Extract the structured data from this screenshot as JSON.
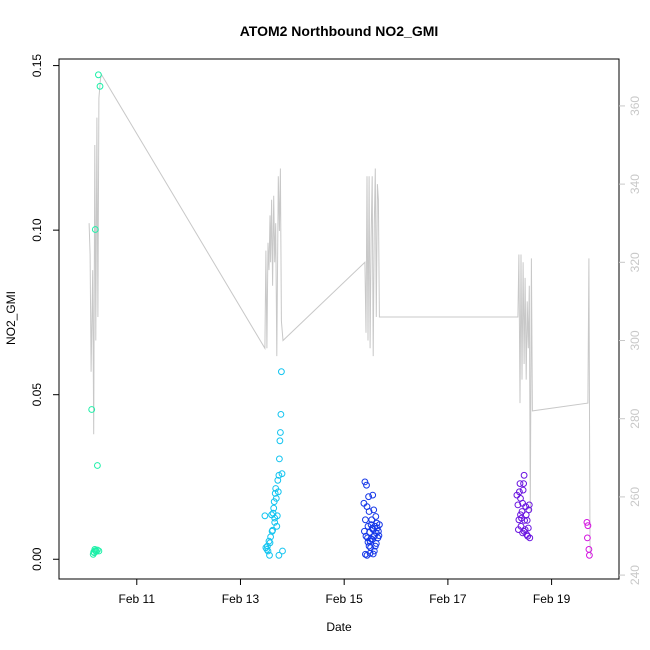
{
  "chart_data": {
    "type": "scatter",
    "title": "ATOM2 Northbound NO2_GMI",
    "xlabel": "Date",
    "ylabel": "NO2_GMI",
    "x_ticks": [
      "Feb 11",
      "Feb 13",
      "Feb 15",
      "Feb 17",
      "Feb 19"
    ],
    "x_tick_values": [
      11,
      13,
      15,
      17,
      19
    ],
    "xlim": [
      9.5,
      20.3
    ],
    "ylim": [
      -0.006,
      0.152
    ],
    "y_ticks": [
      "0.00",
      "0.05",
      "0.10",
      "0.15"
    ],
    "y_tick_values": [
      0.0,
      0.05,
      0.1,
      0.15
    ],
    "y2lim": [
      239,
      372
    ],
    "y2_ticks": [
      "240",
      "260",
      "280",
      "300",
      "320",
      "340",
      "360"
    ],
    "y2_tick_values": [
      240,
      260,
      280,
      300,
      320,
      340,
      360
    ],
    "grid": false,
    "legend": "none",
    "line_color": "#c8c8c8",
    "colors": {
      "g1": "#1cf0a8",
      "g2": "#12c4f0",
      "g3": "#1436e8",
      "g4": "#6a14e0",
      "g5": "#d414e0"
    },
    "series": [
      {
        "color_key": "g1",
        "points": [
          [
            10.13,
            0.0455
          ],
          [
            10.16,
            0.0015
          ],
          [
            10.17,
            0.0022
          ],
          [
            10.19,
            0.003
          ],
          [
            10.2,
            0.0026
          ],
          [
            10.22,
            0.0024
          ],
          [
            10.24,
            0.0028
          ],
          [
            10.2,
            0.1002
          ],
          [
            10.24,
            0.0285
          ],
          [
            10.26,
            0.1472
          ],
          [
            10.29,
            0.1437
          ],
          [
            10.18,
            0.002
          ],
          [
            10.27,
            0.0025
          ]
        ]
      },
      {
        "color_key": "g2",
        "points": [
          [
            13.47,
            0.0132
          ],
          [
            13.49,
            0.0035
          ],
          [
            13.51,
            0.003
          ],
          [
            13.52,
            0.004
          ],
          [
            13.55,
            0.0055
          ],
          [
            13.56,
            0.0012
          ],
          [
            13.58,
            0.0068
          ],
          [
            13.6,
            0.0135
          ],
          [
            13.61,
            0.0085
          ],
          [
            13.63,
            0.014
          ],
          [
            13.64,
            0.0155
          ],
          [
            13.65,
            0.0175
          ],
          [
            13.66,
            0.0125
          ],
          [
            13.67,
            0.02
          ],
          [
            13.68,
            0.0215
          ],
          [
            13.69,
            0.0185
          ],
          [
            13.7,
            0.01
          ],
          [
            13.71,
            0.0132
          ],
          [
            13.72,
            0.024
          ],
          [
            13.73,
            0.0205
          ],
          [
            13.74,
            0.0255
          ],
          [
            13.74,
            0.0012
          ],
          [
            13.75,
            0.0305
          ],
          [
            13.76,
            0.036
          ],
          [
            13.77,
            0.0385
          ],
          [
            13.78,
            0.044
          ],
          [
            13.79,
            0.057
          ],
          [
            13.8,
            0.026
          ],
          [
            13.81,
            0.0025
          ],
          [
            13.62,
            0.0088
          ],
          [
            13.66,
            0.0112
          ],
          [
            13.57,
            0.005
          ],
          [
            13.53,
            0.0025
          ]
        ]
      },
      {
        "color_key": "g3",
        "points": [
          [
            15.38,
            0.017
          ],
          [
            15.39,
            0.0085
          ],
          [
            15.4,
            0.0235
          ],
          [
            15.41,
            0.012
          ],
          [
            15.42,
            0.007
          ],
          [
            15.43,
            0.0225
          ],
          [
            15.44,
            0.016
          ],
          [
            15.45,
            0.0065
          ],
          [
            15.46,
            0.01
          ],
          [
            15.47,
            0.019
          ],
          [
            15.48,
            0.0145
          ],
          [
            15.49,
            0.0082
          ],
          [
            15.5,
            0.0055
          ],
          [
            15.51,
            0.0035
          ],
          [
            15.52,
            0.0105
          ],
          [
            15.53,
            0.012
          ],
          [
            15.54,
            0.006
          ],
          [
            15.55,
            0.0195
          ],
          [
            15.56,
            0.009
          ],
          [
            15.57,
            0.015
          ],
          [
            15.58,
            0.007
          ],
          [
            15.59,
            0.01
          ],
          [
            15.6,
            0.004
          ],
          [
            15.61,
            0.013
          ],
          [
            15.62,
            0.008
          ],
          [
            15.63,
            0.011
          ],
          [
            15.64,
            0.0095
          ],
          [
            15.65,
            0.0065
          ],
          [
            15.66,
            0.0085
          ],
          [
            15.67,
            0.0072
          ],
          [
            15.68,
            0.0105
          ],
          [
            15.41,
            0.0015
          ],
          [
            15.44,
            0.0012
          ],
          [
            15.5,
            0.0018
          ],
          [
            15.56,
            0.0016
          ],
          [
            15.52,
            0.0062
          ],
          [
            15.46,
            0.0052
          ],
          [
            15.58,
            0.0025
          ],
          [
            15.62,
            0.0048
          ],
          [
            15.48,
            0.004
          ],
          [
            15.54,
            0.0094
          ]
        ]
      },
      {
        "color_key": "g4",
        "points": [
          [
            18.33,
            0.0195
          ],
          [
            18.35,
            0.0165
          ],
          [
            18.36,
            0.009
          ],
          [
            18.38,
            0.0205
          ],
          [
            18.39,
            0.023
          ],
          [
            18.4,
            0.0185
          ],
          [
            18.41,
            0.01
          ],
          [
            18.42,
            0.0125
          ],
          [
            18.43,
            0.0145
          ],
          [
            18.44,
            0.008
          ],
          [
            18.45,
            0.021
          ],
          [
            18.46,
            0.023
          ],
          [
            18.47,
            0.0255
          ],
          [
            18.48,
            0.0118
          ],
          [
            18.49,
            0.009
          ],
          [
            18.5,
            0.016
          ],
          [
            18.51,
            0.0135
          ],
          [
            18.52,
            0.0075
          ],
          [
            18.53,
            0.0118
          ],
          [
            18.54,
            0.007
          ],
          [
            18.55,
            0.0095
          ],
          [
            18.56,
            0.015
          ],
          [
            18.57,
            0.0165
          ],
          [
            18.58,
            0.0065
          ],
          [
            18.37,
            0.012
          ],
          [
            18.44,
            0.017
          ],
          [
            18.4,
            0.0135
          ],
          [
            18.47,
            0.0085
          ]
        ]
      },
      {
        "color_key": "g5",
        "points": [
          [
            19.68,
            0.0112
          ],
          [
            19.69,
            0.0065
          ],
          [
            19.7,
            0.0102
          ],
          [
            19.72,
            0.003
          ],
          [
            19.73,
            0.0012
          ]
        ]
      }
    ],
    "altitude_line": [
      [
        10.08,
        330
      ],
      [
        10.1,
        322
      ],
      [
        10.12,
        292
      ],
      [
        10.15,
        318
      ],
      [
        10.17,
        276
      ],
      [
        10.19,
        350
      ],
      [
        10.21,
        300
      ],
      [
        10.23,
        357
      ],
      [
        10.25,
        306
      ],
      [
        10.27,
        362
      ],
      [
        10.3,
        367
      ],
      [
        10.32,
        368
      ],
      [
        13.47,
        298
      ],
      [
        13.49,
        323
      ],
      [
        13.51,
        298
      ],
      [
        13.53,
        325
      ],
      [
        13.55,
        318
      ],
      [
        13.57,
        332
      ],
      [
        13.58,
        320
      ],
      [
        13.6,
        336
      ],
      [
        13.62,
        314
      ],
      [
        13.64,
        337
      ],
      [
        13.66,
        320
      ],
      [
        13.68,
        330
      ],
      [
        13.7,
        296
      ],
      [
        13.73,
        342
      ],
      [
        13.75,
        328
      ],
      [
        13.77,
        344
      ],
      [
        13.79,
        305
      ],
      [
        13.82,
        300
      ],
      [
        15.4,
        320
      ],
      [
        15.42,
        302
      ],
      [
        15.44,
        342
      ],
      [
        15.46,
        300
      ],
      [
        15.48,
        342
      ],
      [
        15.5,
        298
      ],
      [
        15.52,
        326
      ],
      [
        15.54,
        342
      ],
      [
        15.56,
        296
      ],
      [
        15.58,
        330
      ],
      [
        15.6,
        344
      ],
      [
        15.62,
        306
      ],
      [
        15.64,
        340
      ],
      [
        15.66,
        336
      ],
      [
        15.68,
        306
      ],
      [
        15.72,
        306
      ],
      [
        18.35,
        306
      ],
      [
        18.37,
        322
      ],
      [
        18.39,
        284
      ],
      [
        18.41,
        322
      ],
      [
        18.43,
        290
      ],
      [
        18.45,
        320
      ],
      [
        18.47,
        294
      ],
      [
        18.49,
        316
      ],
      [
        18.51,
        290
      ],
      [
        18.53,
        310
      ],
      [
        18.55,
        298
      ],
      [
        18.57,
        314
      ],
      [
        18.59,
        256
      ],
      [
        18.61,
        321
      ],
      [
        18.63,
        282
      ],
      [
        19.7,
        284
      ],
      [
        19.72,
        321
      ],
      [
        19.74,
        248
      ],
      [
        19.75,
        245
      ]
    ],
    "y2_visible_tick_labels": true
  }
}
